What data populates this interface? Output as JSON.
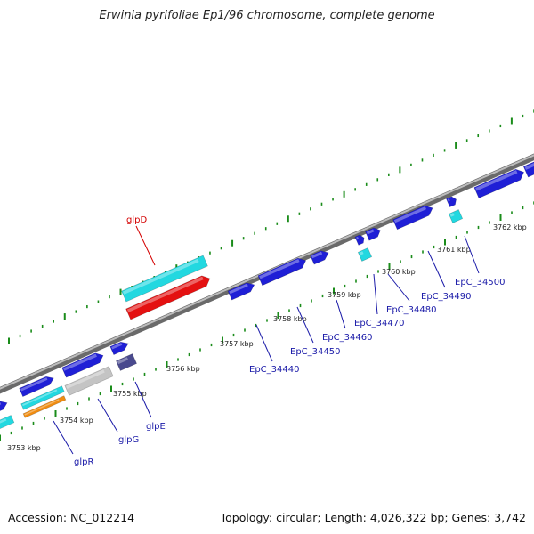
{
  "title": "Erwinia pyrifoliae Ep1/96 chromosome, complete genome",
  "footer": {
    "accession": "Accession: NC_012214",
    "topology": "Topology: circular; Length: 4,026,322 bp; Genes: 3,742"
  },
  "colors": {
    "gene_blue": "#1f1fd6",
    "cyan": "#22d8e0",
    "red": "#e41111",
    "grey": "#c4c4c4",
    "orange": "#f08c10",
    "dark_slate": "#4a4a8e",
    "tick_green": "#1a8c1a",
    "backbone": "#8a8a8a",
    "label_blue": "#1a1aa8",
    "label_red": "#d40000"
  },
  "kbp_labels": [
    "3753 kbp",
    "3754 kbp",
    "3755 kbp",
    "3756 kbp",
    "3757 kbp",
    "3758 kbp",
    "3759 kbp",
    "3760 kbp",
    "3761 kbp",
    "3762 kbp"
  ],
  "gene_labels": [
    {
      "text": "glpD",
      "color": "red"
    },
    {
      "text": "glpR",
      "color": "blue"
    },
    {
      "text": "glpG",
      "color": "blue"
    },
    {
      "text": "glpE",
      "color": "blue"
    },
    {
      "text": "EpC_34440",
      "color": "blue"
    },
    {
      "text": "EpC_34450",
      "color": "blue"
    },
    {
      "text": "EpC_34460",
      "color": "blue"
    },
    {
      "text": "EpC_34470",
      "color": "blue"
    },
    {
      "text": "EpC_34480",
      "color": "blue"
    },
    {
      "text": "EpC_34490",
      "color": "blue"
    },
    {
      "text": "EpC_34500",
      "color": "blue"
    }
  ]
}
